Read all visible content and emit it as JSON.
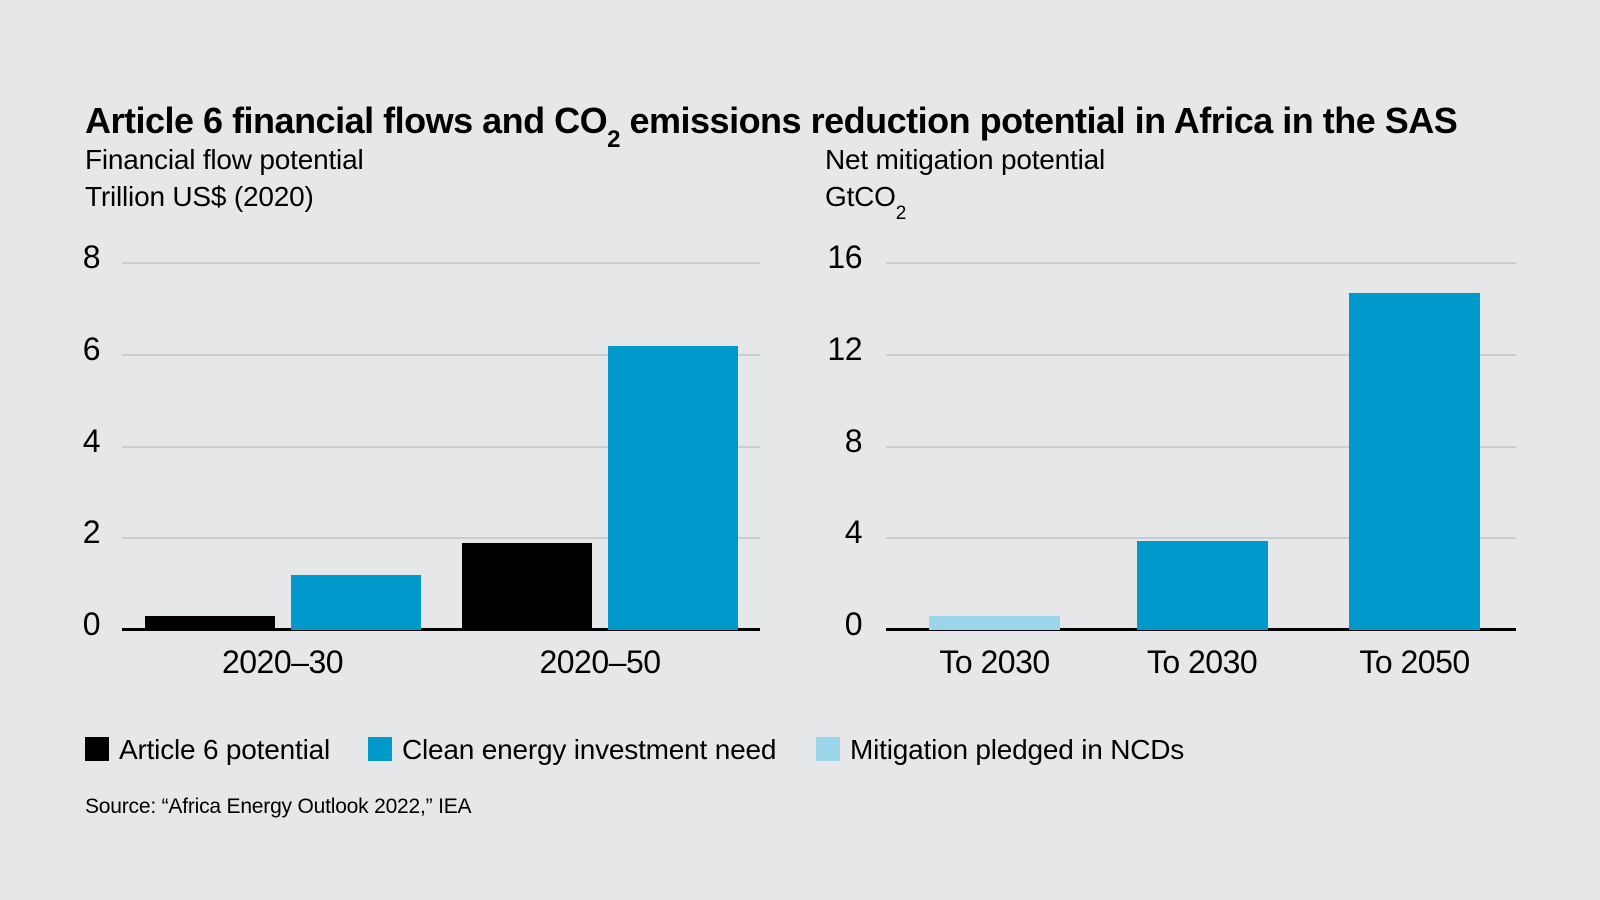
{
  "page": {
    "background": "#E6E7E8"
  },
  "colors": {
    "black_series": "#000000",
    "blue_series": "#0099CB",
    "light_blue_series": "#9AD5EA",
    "gridline": "#CBCCCD",
    "axis": "#000000"
  },
  "title": {
    "text": "Article 6 financial flows and CO2 emissions reduction potential in Africa in the SAS",
    "before_sub": "Article 6 financial flows and CO",
    "sub": "2",
    "after_sub": " emissions reduction potential in Africa in the SAS"
  },
  "legend": {
    "items": [
      {
        "label": "Article 6 potential",
        "color": "#000000"
      },
      {
        "label": "Clean energy investment need",
        "color": "#0099CB"
      },
      {
        "label": "Mitigation pledged in NCDs",
        "color": "#9AD5EA"
      }
    ]
  },
  "source": {
    "text": "Source: “Africa Energy Outlook 2022,” IEA"
  },
  "chart_data": [
    {
      "type": "bar",
      "title": "Financial flow potential",
      "ylabel": "Trillion US$ (2020)",
      "categories": [
        "2020–30",
        "2020–50"
      ],
      "series": [
        {
          "name": "Article 6 potential",
          "color": "#000000",
          "values": [
            0.3,
            1.9
          ]
        },
        {
          "name": "Clean energy investment need",
          "color": "#0099CB",
          "values": [
            1.2,
            6.2
          ]
        }
      ],
      "ylim": [
        0,
        8
      ],
      "yticks": [
        0,
        2,
        4,
        6,
        8
      ],
      "grid": true,
      "legend_position": "bottom"
    },
    {
      "type": "bar",
      "title": "Net mitigation potential",
      "ylabel": "GtCO2",
      "ylabel_display": {
        "base": "GtCO",
        "sub": "2"
      },
      "categories": [
        "To 2030",
        "To 2030",
        "To 2050"
      ],
      "bars": [
        {
          "category": "To 2030",
          "series": "Mitigation pledged in NCDs",
          "color": "#9AD5EA",
          "value": 0.6
        },
        {
          "category": "To 2030",
          "series": "Clean energy investment need",
          "color": "#0099CB",
          "value": 3.9
        },
        {
          "category": "To 2050",
          "series": "Clean energy investment need",
          "color": "#0099CB",
          "value": 14.7
        }
      ],
      "ylim": [
        0,
        16
      ],
      "yticks": [
        0,
        4,
        8,
        12,
        16
      ],
      "grid": true
    }
  ]
}
